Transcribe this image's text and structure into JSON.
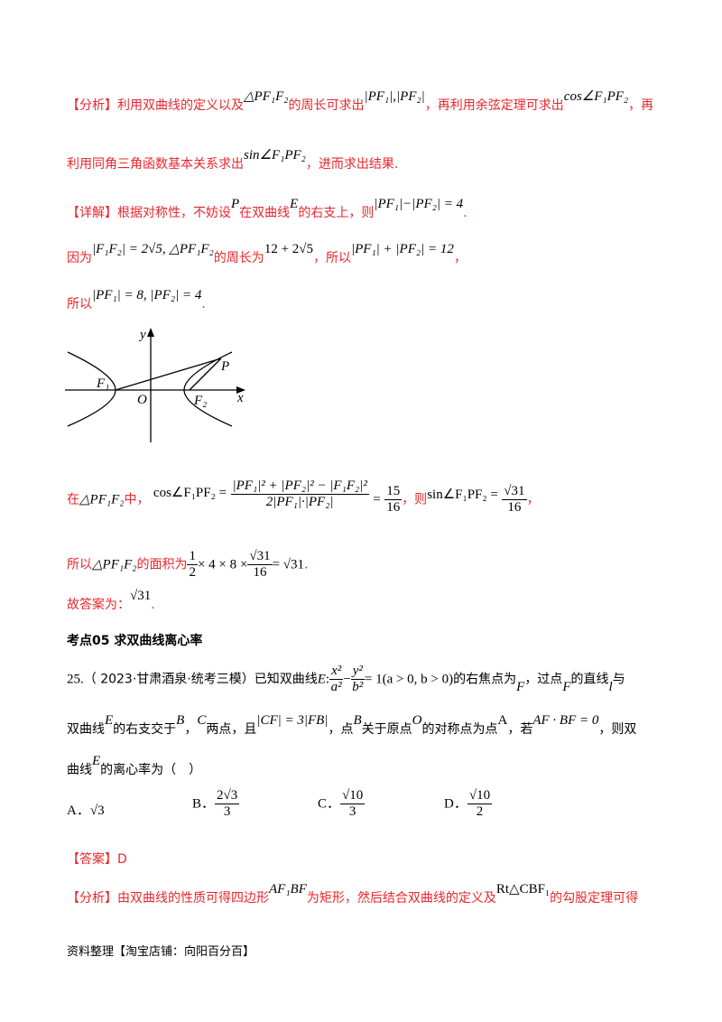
{
  "analysis1": {
    "label": "【分析】",
    "p1": "利用双曲线的定义以及",
    "m1": "△PF₁F₂",
    "p2": "的周长可求出",
    "m2": "|PF₁|,|PF₂|",
    "p3": "，再利用余弦定理可求出",
    "m3": "cos∠F₁PF₂",
    "p4": "，再",
    "p5": "利用同角三角函数基本关系求出",
    "m4": "sin∠F₁PF₂",
    "p6": "，进而求出结果."
  },
  "detail": {
    "label": "【详解】",
    "l1a": "根据对称性，不妨设",
    "l1P": "P",
    "l1b": "在双曲线",
    "l1E": "E",
    "l1c": "的右支上，则",
    "l1m": "|PF₁|−|PF₂| = 4",
    "l1d": ".",
    "l2a": "因为",
    "l2m1": "|F₁F₂| = 2√5, △PF₁F₂",
    "l2b": "的周长为",
    "l2m2": "12 + 2√5",
    "l2c": "，所以",
    "l2m3": "|PF₁| + |PF₂| = 12",
    "l2d": "，",
    "l3a": "所以",
    "l3m": "|PF₁| = 8, |PF₂| = 4",
    "l3b": ".",
    "l4a": "在",
    "l4m1": "△PF₁F₂",
    "l4b": "中，",
    "l4cos": "cos∠F₁PF₂ =",
    "l4num": "|PF₁|² + |PF₂|² − |F₁F₂|²",
    "l4den": "2|PF₁|·|PF₂|",
    "l4eq": "=",
    "l4rn": "15",
    "l4rd": "16",
    "l4c": "，则",
    "l4sin": "sin∠F₁PF₂ =",
    "l4sn": "√31",
    "l4sd": "16",
    "l4d": "，",
    "l5a": "所以",
    "l5m1": "△PF₁F₂",
    "l5b": "的面积为",
    "l5h_n": "1",
    "l5h_d": "2",
    "l5mid": "× 4 × 8 ×",
    "l5f_n": "√31",
    "l5f_d": "16",
    "l5end": "= √31",
    "l5c": ".",
    "l6a": "故答案为：",
    "l6m": "√31",
    "l6b": "."
  },
  "figure": {
    "y": "y",
    "x": "x",
    "P": "P",
    "F1": "F₁",
    "F2": "F₂",
    "O": "O"
  },
  "section": {
    "title": "考点05 求双曲线离心率"
  },
  "question": {
    "num": "25.",
    "src": "（ 2023·甘肃酒泉·统考三模）已知双曲线",
    "E": "E",
    "colon": ":",
    "x2": "x²",
    "a2": "a²",
    "minus": "−",
    "y2": "y²",
    "b2": "b²",
    "cond": "= 1(a > 0, b > 0)",
    "q1": "的右焦点为",
    "F": "F",
    "q2": "，过点",
    "F_b": "F",
    "q3": "的直线",
    "l": "l",
    "q4": "与",
    "q5": "双曲线",
    "E2": "E",
    "q6": "的右支交于",
    "B": "B",
    "q7": "，",
    "C": "C",
    "q8": "两点，且",
    "cfb": "|CF| = 3|FB|",
    "q9": "，点",
    "B2": "B",
    "q10": "关于原点",
    "O": "O",
    "q11": "的对称点为点",
    "A": "A",
    "q12": "，若",
    "vec": "AF · BF = 0",
    "q13": "，则双",
    "q14": "曲线",
    "E3": "E",
    "q15": "的离心率为（　）",
    "options": [
      {
        "label": "A．",
        "value": "√3"
      },
      {
        "label": "B．",
        "num": "2√3",
        "den": "3"
      },
      {
        "label": "C．",
        "num": "√10",
        "den": "3"
      },
      {
        "label": "D．",
        "num": "√10",
        "den": "2"
      }
    ]
  },
  "answer": {
    "label": "【答案】",
    "value": "D"
  },
  "analysis2": {
    "label": "【分析】",
    "p1": "由双曲线的性质可得四边形",
    "m1": "AF₁BF",
    "p2": "为矩形，然后结合双曲线的定义及",
    "m2": "Rt△CBF₁",
    "p3": "的勾股定理可得"
  },
  "footer": {
    "text": "资料整理【淘宝店铺：向阳百分百】"
  },
  "colors": {
    "accent_red": "#e8262d"
  }
}
